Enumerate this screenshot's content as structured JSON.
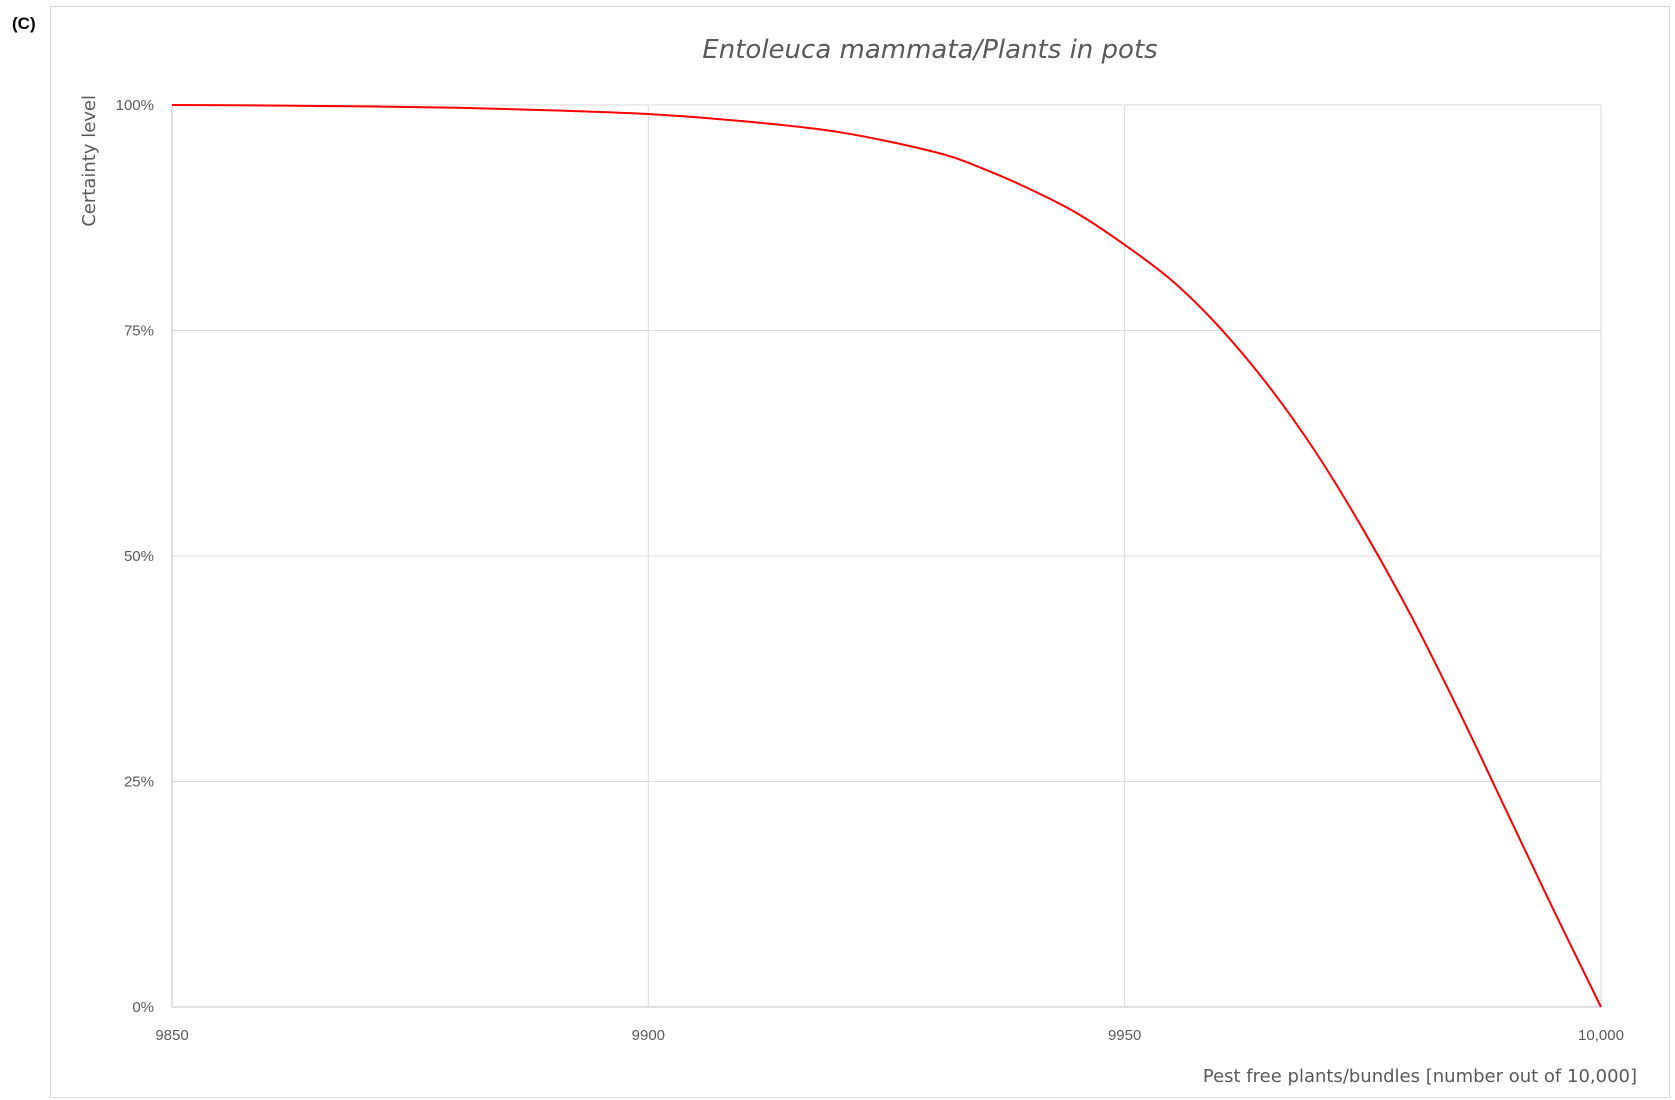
{
  "panel_label": "(C)",
  "chart_data": {
    "type": "line",
    "title": "Entoleuca mammata/Plants in pots",
    "xlabel": "Pest free plants/bundles [number out of 10,000]",
    "ylabel": "Certainty level",
    "xlim": [
      9850,
      10000
    ],
    "ylim": [
      0,
      100
    ],
    "x_ticks": [
      9850,
      9900,
      9950,
      10000
    ],
    "x_tick_labels": [
      "9850",
      "9900",
      "9950",
      "10,000"
    ],
    "y_ticks": [
      0,
      25,
      50,
      75,
      100
    ],
    "y_tick_labels": [
      "0%",
      "25%",
      "50%",
      "75%",
      "100%"
    ],
    "grid": true,
    "line_color": "#ff0000",
    "grid_color": "#d9d9d9",
    "series": [
      {
        "x": [
          9850,
          9860,
          9870,
          9880,
          9890,
          9900,
          9910,
          9920,
          9930,
          9935,
          9940,
          9945,
          9950,
          9955,
          9960,
          9965,
          9970,
          9975,
          9980,
          9985,
          9990,
          9995,
          10000
        ],
        "values": [
          100,
          99.95,
          99.85,
          99.7,
          99.4,
          99.0,
          98.2,
          97.0,
          94.8,
          93.0,
          90.7,
          88.0,
          84.5,
          80.5,
          75.3,
          69.0,
          61.6,
          53.0,
          43.5,
          33.0,
          21.9,
          10.8,
          0
        ]
      }
    ]
  }
}
